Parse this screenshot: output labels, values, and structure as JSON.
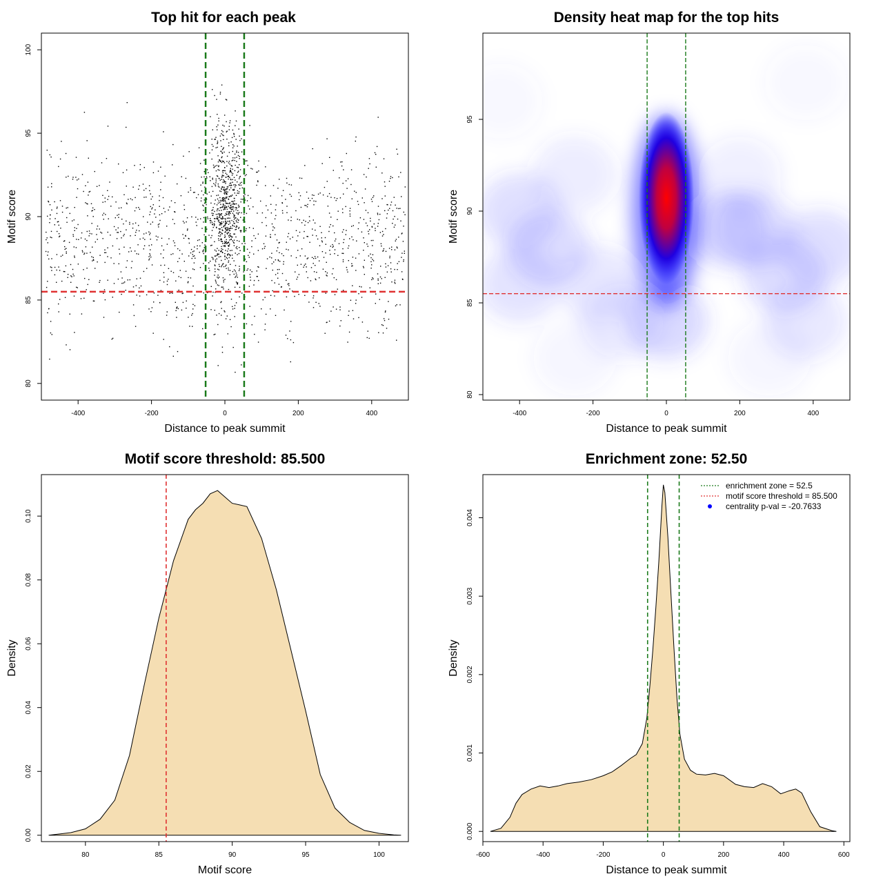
{
  "chart_data": [
    {
      "type": "scatter",
      "title": "Top hit for each peak",
      "xlabel": "Distance to peak summit",
      "ylabel": "Motif score",
      "xlim": [
        -500,
        500
      ],
      "ylim": [
        79,
        101
      ],
      "xticks": [
        "-400",
        "-200",
        "0",
        "200",
        "400"
      ],
      "yticks": [
        "80",
        "85",
        "90",
        "95",
        "100"
      ],
      "vlines": [
        -52.5,
        52.5
      ],
      "hline": 85.5,
      "vline_color": "#1a7a1a",
      "hline_color": "#e03030",
      "point_color": "#000000",
      "points_description": "approx. 2000 top hits spread across [-500,500], concentrated near 0 with scores 85-95"
    },
    {
      "type": "heatmap",
      "title": "Density heat map for the top hits",
      "xlabel": "Distance to peak summit",
      "ylabel": "Motif score",
      "xlim": [
        -500,
        500
      ],
      "ylim": [
        79.7,
        99.7
      ],
      "xticks": [
        "-400",
        "-200",
        "0",
        "200",
        "400"
      ],
      "yticks": [
        "80",
        "85",
        "90",
        "95"
      ],
      "vlines": [
        -52.5,
        52.5
      ],
      "hline": 85.5,
      "peak": {
        "x": 0,
        "y": 91.5
      },
      "colors": [
        "#ffffff",
        "#0000ff",
        "#ff0000"
      ]
    },
    {
      "type": "area",
      "title": "Motif score threshold: 85.500",
      "xlabel": "Motif score",
      "ylabel": "Density",
      "xlim": [
        77,
        102
      ],
      "ylim": [
        -0.002,
        0.113
      ],
      "xticks": [
        "80",
        "85",
        "90",
        "95",
        "100"
      ],
      "yticks": [
        "0.00",
        "0.02",
        "0.04",
        "0.06",
        "0.08",
        "0.10"
      ],
      "vline": 85.5,
      "fill": "#f5deb3",
      "x": [
        77.5,
        79,
        80,
        81,
        82,
        83,
        84,
        85,
        85.5,
        86,
        87,
        87.5,
        88,
        88.5,
        89,
        89.5,
        90,
        90.5,
        91,
        92,
        93,
        94,
        95,
        96,
        97,
        98,
        99,
        100,
        101,
        101.5
      ],
      "values": [
        0.0,
        0.0008,
        0.002,
        0.005,
        0.011,
        0.025,
        0.047,
        0.068,
        0.077,
        0.086,
        0.099,
        0.102,
        0.104,
        0.107,
        0.108,
        0.106,
        0.104,
        0.1035,
        0.103,
        0.093,
        0.077,
        0.058,
        0.039,
        0.019,
        0.0085,
        0.004,
        0.0015,
        0.0006,
        0.0001,
        0.0
      ]
    },
    {
      "type": "area",
      "title": "Enrichment zone: 52.50",
      "xlabel": "Distance to peak summit",
      "ylabel": "Density",
      "xlim": [
        -600,
        620
      ],
      "ylim": [
        -0.00013,
        0.00455
      ],
      "xticks": [
        "-600",
        "-400",
        "-200",
        "0",
        "200",
        "400",
        "600"
      ],
      "yticks": [
        "0.000",
        "0.001",
        "0.002",
        "0.003",
        "0.004"
      ],
      "vlines": [
        -52.5,
        52.5
      ],
      "fill": "#f5deb3",
      "x": [
        -575,
        -540,
        -510,
        -490,
        -470,
        -440,
        -410,
        -380,
        -350,
        -320,
        -280,
        -240,
        -200,
        -170,
        -140,
        -110,
        -90,
        -70,
        -55,
        -45,
        -35,
        -25,
        -15,
        -5,
        0,
        5,
        15,
        25,
        35,
        45,
        55,
        70,
        90,
        110,
        140,
        170,
        200,
        240,
        270,
        300,
        330,
        360,
        390,
        420,
        440,
        460,
        490,
        520,
        560,
        575
      ],
      "values": [
        0.0,
        4e-05,
        0.00018,
        0.00036,
        0.00047,
        0.00054,
        0.00058,
        0.00056,
        0.00058,
        0.00061,
        0.00063,
        0.00066,
        0.00071,
        0.00076,
        0.00084,
        0.00093,
        0.00098,
        0.00112,
        0.00145,
        0.00185,
        0.00232,
        0.00285,
        0.00345,
        0.00415,
        0.00442,
        0.00432,
        0.00375,
        0.00305,
        0.00235,
        0.0017,
        0.00124,
        0.00092,
        0.00078,
        0.00073,
        0.00072,
        0.00074,
        0.00071,
        0.0006,
        0.00057,
        0.00056,
        0.00061,
        0.00057,
        0.00048,
        0.00052,
        0.00054,
        0.00049,
        0.00025,
        6e-05,
        1e-05,
        0.0
      ],
      "legend": {
        "position": "top-right",
        "entries": [
          {
            "label": "enrichment zone = 52.5",
            "color": "#1a7a1a",
            "style": "dotted-line"
          },
          {
            "label": "motif score threshold = 85.500",
            "color": "#e03030",
            "style": "dotted-line"
          },
          {
            "label": "centrality p-val = -20.7633",
            "color": "#0000ff",
            "style": "point"
          }
        ]
      }
    }
  ]
}
